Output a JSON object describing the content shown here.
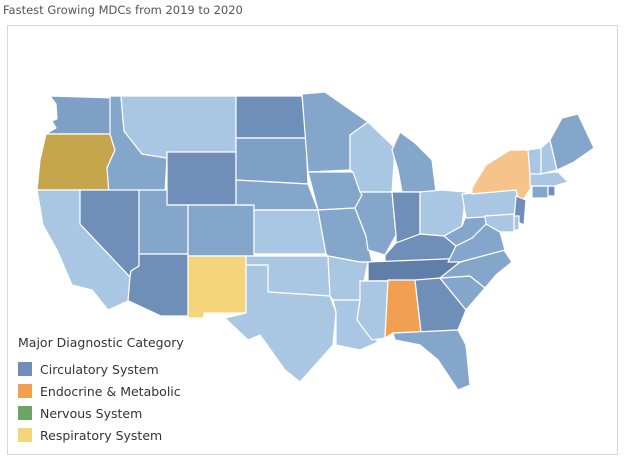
{
  "title": "Fastest Growing MDCs from 2019 to 2020",
  "colors": {
    "circulatory_dark": "#6f8fb8",
    "circulatory_mid": "#85a6cb",
    "circulatory_light": "#a9c7e2",
    "endocrine": "#f0a050",
    "endocrine_light": "#f6c48a",
    "respiratory": "#f4d57c",
    "olive": "#c5a64c",
    "nervous": "#6aa563"
  },
  "legend": {
    "title": "Major Diagnostic Category",
    "items": [
      {
        "label": "Circulatory System",
        "color": "#6f8fb8"
      },
      {
        "label": "Endocrine & Metabolic",
        "color": "#f0a050"
      },
      {
        "label": "Nervous System",
        "color": "#6aa563"
      },
      {
        "label": "Respiratory System",
        "color": "#f4d57c"
      }
    ]
  },
  "states": {
    "WA": {
      "category": "Circulatory System",
      "color": "#7e9fc6"
    },
    "OR": {
      "category": "Respiratory System",
      "color": "#c5a64c"
    },
    "CA": {
      "category": "Circulatory System",
      "color": "#a9c7e2"
    },
    "ID": {
      "category": "Circulatory System",
      "color": "#85a6cb"
    },
    "NV": {
      "category": "Circulatory System",
      "color": "#6f8fb8"
    },
    "MT": {
      "category": "Circulatory System",
      "color": "#a9c7e2"
    },
    "WY": {
      "category": "Circulatory System",
      "color": "#6f8fb8"
    },
    "UT": {
      "category": "Circulatory System",
      "color": "#85a6cb"
    },
    "AZ": {
      "category": "Circulatory System",
      "color": "#6f8fb8"
    },
    "CO": {
      "category": "Circulatory System",
      "color": "#85a6cb"
    },
    "NM": {
      "category": "Respiratory System",
      "color": "#f4d57c"
    },
    "ND": {
      "category": "Circulatory System",
      "color": "#6f8fb8"
    },
    "SD": {
      "category": "Circulatory System",
      "color": "#7e9fc6"
    },
    "NE": {
      "category": "Circulatory System",
      "color": "#85a6cb"
    },
    "KS": {
      "category": "Circulatory System",
      "color": "#a9c7e2"
    },
    "OK": {
      "category": "Circulatory System",
      "color": "#a9c7e2"
    },
    "TX": {
      "category": "Circulatory System",
      "color": "#a9c7e2"
    },
    "MN": {
      "category": "Circulatory System",
      "color": "#85a6cb"
    },
    "IA": {
      "category": "Circulatory System",
      "color": "#85a6cb"
    },
    "MO": {
      "category": "Circulatory System",
      "color": "#85a6cb"
    },
    "AR": {
      "category": "Circulatory System",
      "color": "#a9c7e2"
    },
    "LA": {
      "category": "Circulatory System",
      "color": "#a9c7e2"
    },
    "WI": {
      "category": "Circulatory System",
      "color": "#a9c7e2"
    },
    "IL": {
      "category": "Circulatory System",
      "color": "#85a6cb"
    },
    "MI": {
      "category": "Circulatory System",
      "color": "#85a6cb"
    },
    "IN": {
      "category": "Circulatory System",
      "color": "#6f8fb8"
    },
    "OH": {
      "category": "Circulatory System",
      "color": "#a9c7e2"
    },
    "KY": {
      "category": "Circulatory System",
      "color": "#6f8fb8"
    },
    "TN": {
      "category": "Circulatory System",
      "color": "#5f7fa8"
    },
    "MS": {
      "category": "Circulatory System",
      "color": "#a9c7e2"
    },
    "AL": {
      "category": "Endocrine & Metabolic",
      "color": "#f0a050"
    },
    "GA": {
      "category": "Circulatory System",
      "color": "#6f8fb8"
    },
    "FL": {
      "category": "Circulatory System",
      "color": "#85a6cb"
    },
    "SC": {
      "category": "Circulatory System",
      "color": "#85a6cb"
    },
    "NC": {
      "category": "Circulatory System",
      "color": "#85a6cb"
    },
    "VA": {
      "category": "Circulatory System",
      "color": "#85a6cb"
    },
    "WV": {
      "category": "Circulatory System",
      "color": "#85a6cb"
    },
    "PA": {
      "category": "Circulatory System",
      "color": "#a9c7e2"
    },
    "NY": {
      "category": "Endocrine & Metabolic",
      "color": "#f6c48a"
    },
    "NJ": {
      "category": "Circulatory System",
      "color": "#6f8fb8"
    },
    "MD": {
      "category": "Circulatory System",
      "color": "#a9c7e2"
    },
    "DE": {
      "category": "Circulatory System",
      "color": "#a9c7e2"
    },
    "CT": {
      "category": "Circulatory System",
      "color": "#85a6cb"
    },
    "RI": {
      "category": "Circulatory System",
      "color": "#6f8fb8"
    },
    "MA": {
      "category": "Circulatory System",
      "color": "#a9c7e2"
    },
    "VT": {
      "category": "Circulatory System",
      "color": "#a9c7e2"
    },
    "NH": {
      "category": "Circulatory System",
      "color": "#a9c7e2"
    },
    "ME": {
      "category": "Circulatory System",
      "color": "#85a6cb"
    }
  }
}
